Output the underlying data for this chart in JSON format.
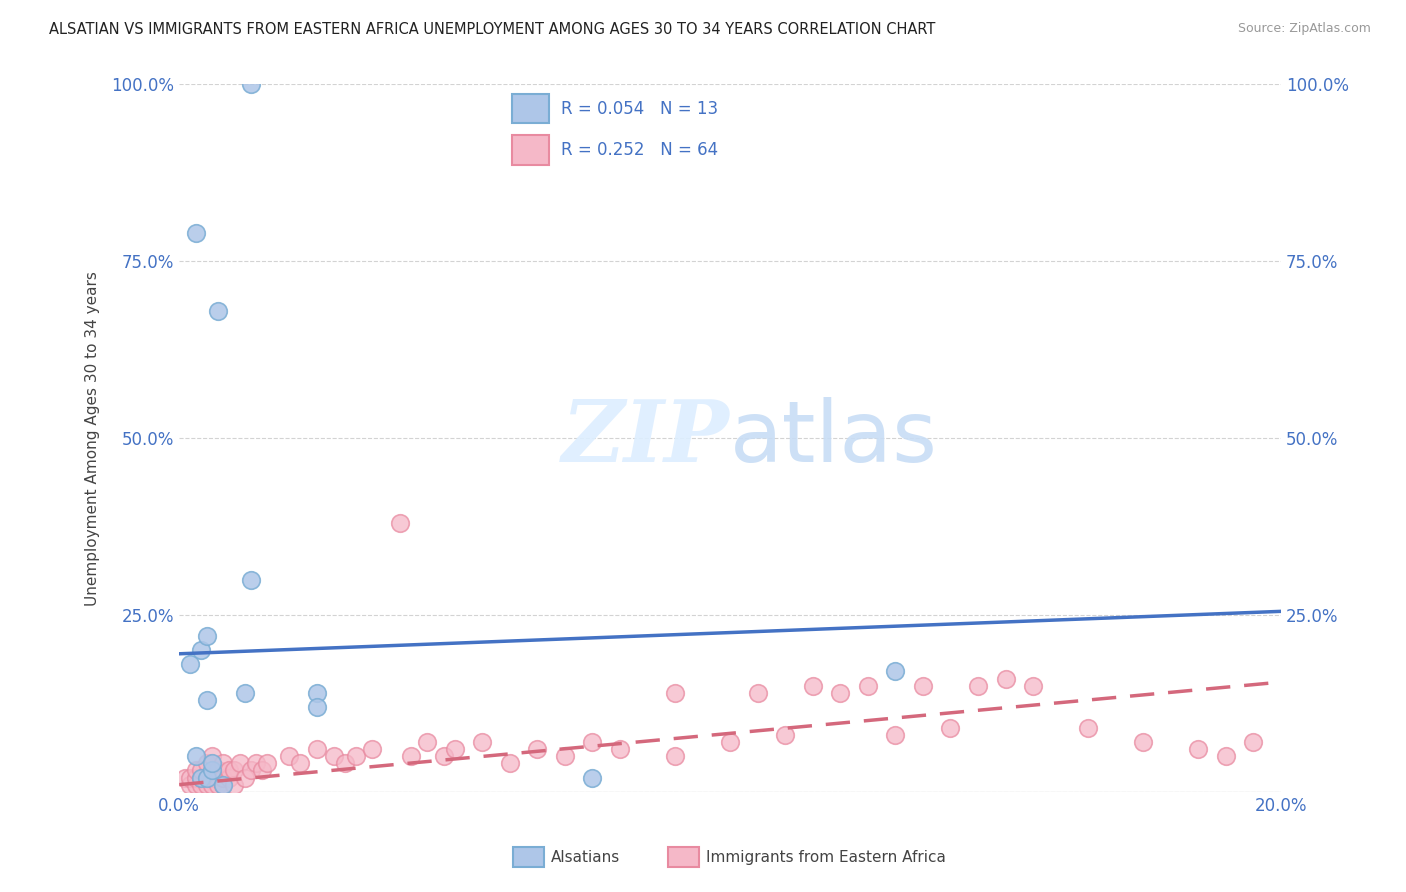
{
  "title": "ALSATIAN VS IMMIGRANTS FROM EASTERN AFRICA UNEMPLOYMENT AMONG AGES 30 TO 34 YEARS CORRELATION CHART",
  "source": "Source: ZipAtlas.com",
  "ylabel": "Unemployment Among Ages 30 to 34 years",
  "xlim": [
    0.0,
    0.2
  ],
  "ylim": [
    0.0,
    1.0
  ],
  "alsatian_color": "#aec6e8",
  "alsatian_edge_color": "#7aadd4",
  "eastern_africa_color": "#f5b8c8",
  "eastern_africa_edge_color": "#e88aa0",
  "alsatian_line_color": "#4472c4",
  "eastern_africa_line_color": "#d4687c",
  "background_color": "#ffffff",
  "grid_color": "#c8c8c8",
  "alsatian_x": [
    0.002,
    0.003,
    0.004,
    0.004,
    0.005,
    0.005,
    0.006,
    0.006,
    0.007,
    0.008,
    0.012,
    0.013,
    0.025,
    0.025,
    0.075,
    0.13,
    0.003,
    0.005,
    0.013
  ],
  "alsatian_y": [
    0.18,
    0.05,
    0.02,
    0.2,
    0.02,
    0.13,
    0.03,
    0.04,
    0.68,
    0.01,
    0.14,
    1.0,
    0.14,
    0.12,
    0.02,
    0.17,
    0.79,
    0.22,
    0.3
  ],
  "eastern_africa_x": [
    0.001,
    0.002,
    0.002,
    0.003,
    0.003,
    0.003,
    0.004,
    0.004,
    0.004,
    0.005,
    0.005,
    0.005,
    0.006,
    0.006,
    0.006,
    0.007,
    0.007,
    0.008,
    0.008,
    0.008,
    0.009,
    0.009,
    0.01,
    0.01,
    0.011,
    0.012,
    0.013,
    0.014,
    0.015,
    0.016,
    0.02,
    0.022,
    0.025,
    0.028,
    0.03,
    0.032,
    0.035,
    0.04,
    0.042,
    0.045,
    0.048,
    0.05,
    0.055,
    0.06,
    0.065,
    0.07,
    0.075,
    0.08,
    0.09,
    0.09,
    0.1,
    0.105,
    0.11,
    0.115,
    0.12,
    0.125,
    0.13,
    0.135,
    0.14,
    0.145,
    0.15,
    0.155,
    0.165,
    0.175,
    0.185,
    0.19,
    0.195
  ],
  "eastern_africa_y": [
    0.02,
    0.01,
    0.02,
    0.01,
    0.02,
    0.03,
    0.01,
    0.02,
    0.03,
    0.01,
    0.02,
    0.04,
    0.01,
    0.02,
    0.05,
    0.01,
    0.03,
    0.01,
    0.02,
    0.04,
    0.02,
    0.03,
    0.01,
    0.03,
    0.04,
    0.02,
    0.03,
    0.04,
    0.03,
    0.04,
    0.05,
    0.04,
    0.06,
    0.05,
    0.04,
    0.05,
    0.06,
    0.38,
    0.05,
    0.07,
    0.05,
    0.06,
    0.07,
    0.04,
    0.06,
    0.05,
    0.07,
    0.06,
    0.05,
    0.14,
    0.07,
    0.14,
    0.08,
    0.15,
    0.14,
    0.15,
    0.08,
    0.15,
    0.09,
    0.15,
    0.16,
    0.15,
    0.09,
    0.07,
    0.06,
    0.05,
    0.07
  ],
  "alsatian_trend_x": [
    0.0,
    0.2
  ],
  "alsatian_trend_y": [
    0.195,
    0.255
  ],
  "eastern_africa_trend_x": [
    0.0,
    0.2
  ],
  "eastern_africa_trend_y": [
    0.01,
    0.155
  ]
}
